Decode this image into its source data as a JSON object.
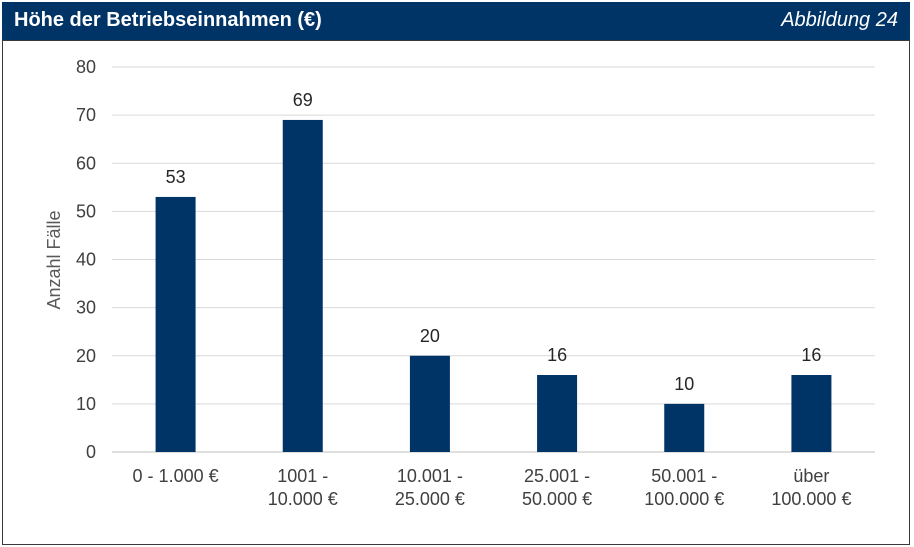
{
  "header": {
    "title": "Höhe der Betriebseinnahmen (€)",
    "figure_label": "Abbildung 24"
  },
  "colors": {
    "header_bg": "#003366",
    "bar": "#003366",
    "grid": "#d9d9d9"
  },
  "chart_data": {
    "type": "bar",
    "categories": [
      [
        "0 - 1.000 €"
      ],
      [
        "1001 -",
        "10.000 €"
      ],
      [
        "10.001 -",
        "25.000 €"
      ],
      [
        "25.001 -",
        "50.000 €"
      ],
      [
        "50.001 -",
        "100.000 €"
      ],
      [
        "über",
        "100.000 €"
      ]
    ],
    "values": [
      53,
      69,
      20,
      16,
      10,
      16
    ],
    "ylabel": "Anzahl Fälle",
    "ylim": [
      0,
      80
    ],
    "yticks": [
      0,
      10,
      20,
      30,
      40,
      50,
      60,
      70,
      80
    ],
    "grid": true,
    "data_labels": true
  }
}
